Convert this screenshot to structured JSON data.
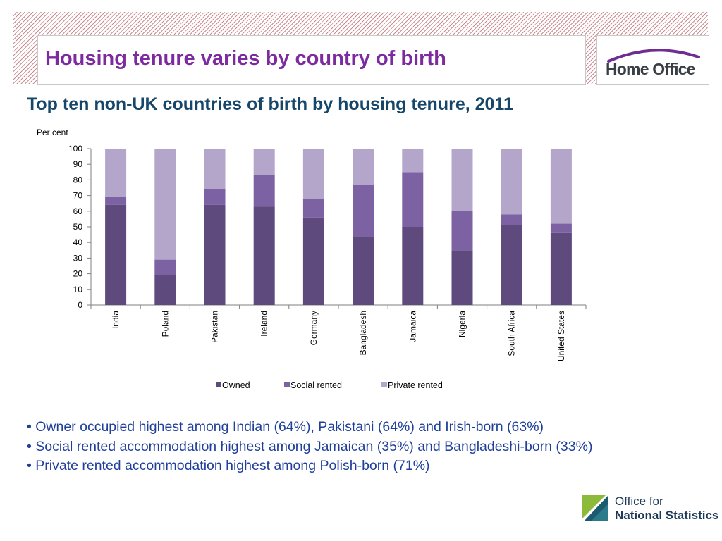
{
  "header": {
    "title": "Housing tenure varies by country of birth",
    "logo_text": "Home Office"
  },
  "subtitle": "Top ten non-UK countries of birth by housing tenure, 2011",
  "chart_data": {
    "type": "bar",
    "stacked": true,
    "ylabel": "Per cent",
    "ylim": [
      0,
      100
    ],
    "yticks": [
      0,
      10,
      20,
      30,
      40,
      50,
      60,
      70,
      80,
      90,
      100
    ],
    "categories": [
      "India",
      "Poland",
      "Pakistan",
      "Ireland",
      "Germany",
      "Bangladesh",
      "Jamaica",
      "Nigeria",
      "South Africa",
      "United States"
    ],
    "series": [
      {
        "name": "Owned",
        "color": "#5f4a7e",
        "values": [
          64,
          19,
          64,
          63,
          56,
          44,
          50,
          35,
          51,
          46
        ]
      },
      {
        "name": "Social rented",
        "color": "#7d62a3",
        "values": [
          5,
          10,
          10,
          20,
          12,
          33,
          35,
          25,
          7,
          6
        ]
      },
      {
        "name": "Private rented",
        "color": "#b4a5cb",
        "values": [
          31,
          71,
          26,
          17,
          32,
          23,
          15,
          40,
          42,
          48
        ]
      }
    ],
    "legend_position": "bottom",
    "grid": false
  },
  "notes": [
    "• Owner occupied highest among Indian (64%), Pakistani (64%) and Irish-born (63%)",
    "• Social rented accommodation highest among  Jamaican (35%) and Bangladeshi-born (33%)",
    "• Private rented accommodation highest among Polish-born (71%)"
  ],
  "footer": {
    "ons_line1": "Office for",
    "ons_line2": "National Statistics"
  }
}
